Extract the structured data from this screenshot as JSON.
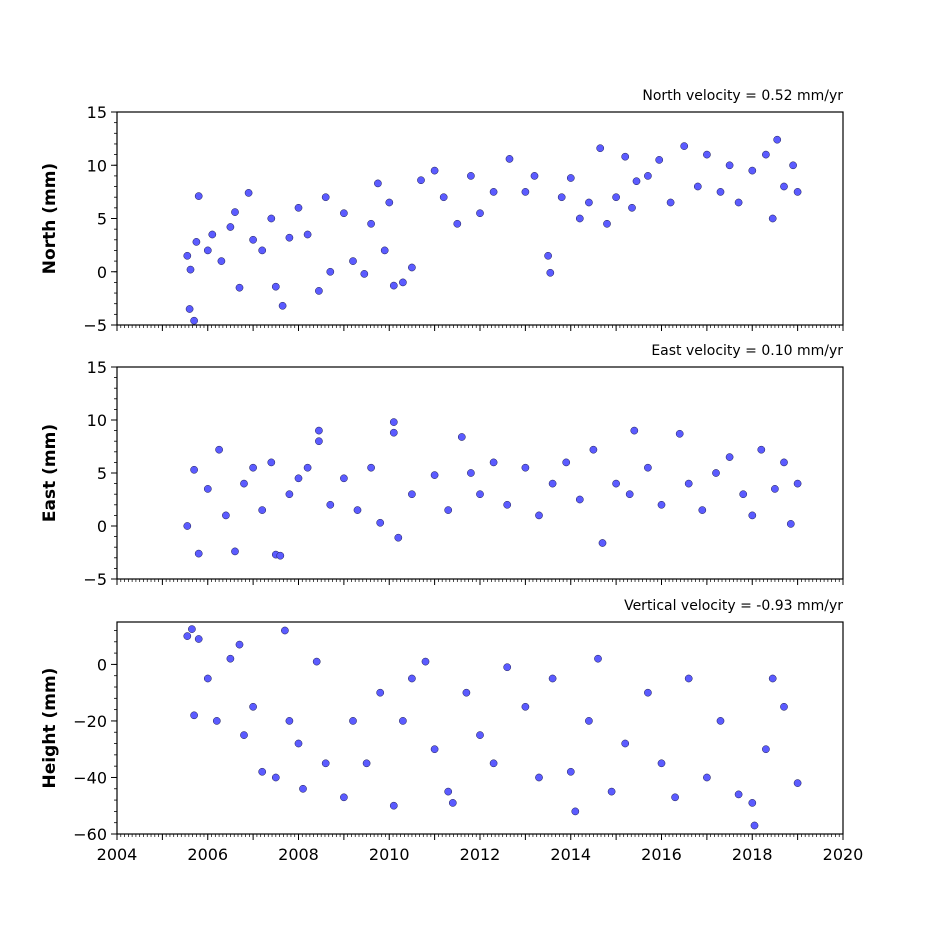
{
  "chart_data": [
    {
      "type": "scatter",
      "ylabel": "North (mm)",
      "velocity_label": "North velocity = 0.52 mm/yr",
      "xlim": [
        2004,
        2020
      ],
      "ylim": [
        -5,
        15
      ],
      "yticks": [
        -5,
        0,
        5,
        10,
        15
      ],
      "ytick_labels": [
        "−5",
        "0",
        "5",
        "10",
        "15"
      ],
      "point_color": "#5b5bff",
      "series": [
        {
          "points": [
            [
              2005.55,
              1.5
            ],
            [
              2005.6,
              -3.5
            ],
            [
              2005.62,
              0.2
            ],
            [
              2005.7,
              -4.6
            ],
            [
              2005.75,
              2.8
            ],
            [
              2005.8,
              7.1
            ],
            [
              2006.0,
              2.0
            ],
            [
              2006.1,
              3.5
            ],
            [
              2006.3,
              1.0
            ],
            [
              2006.5,
              4.2
            ],
            [
              2006.6,
              5.6
            ],
            [
              2006.7,
              -1.5
            ],
            [
              2006.9,
              7.4
            ],
            [
              2007.0,
              3.0
            ],
            [
              2007.2,
              2.0
            ],
            [
              2007.4,
              5.0
            ],
            [
              2007.5,
              -1.4
            ],
            [
              2007.65,
              -3.2
            ],
            [
              2007.8,
              3.2
            ],
            [
              2008.0,
              6.0
            ],
            [
              2008.2,
              3.5
            ],
            [
              2008.45,
              -1.8
            ],
            [
              2008.6,
              7.0
            ],
            [
              2008.7,
              0.0
            ],
            [
              2009.0,
              5.5
            ],
            [
              2009.2,
              1.0
            ],
            [
              2009.45,
              -0.2
            ],
            [
              2009.6,
              4.5
            ],
            [
              2009.75,
              8.3
            ],
            [
              2009.9,
              2.0
            ],
            [
              2010.0,
              6.5
            ],
            [
              2010.1,
              -1.3
            ],
            [
              2010.3,
              -1.0
            ],
            [
              2010.5,
              0.4
            ],
            [
              2010.7,
              8.6
            ],
            [
              2011.0,
              9.5
            ],
            [
              2011.2,
              7.0
            ],
            [
              2011.5,
              4.5
            ],
            [
              2011.8,
              9.0
            ],
            [
              2012.0,
              5.5
            ],
            [
              2012.3,
              7.5
            ],
            [
              2012.65,
              10.6
            ],
            [
              2013.0,
              7.5
            ],
            [
              2013.2,
              9.0
            ],
            [
              2013.5,
              1.5
            ],
            [
              2013.55,
              -0.1
            ],
            [
              2013.8,
              7.0
            ],
            [
              2014.0,
              8.8
            ],
            [
              2014.2,
              5.0
            ],
            [
              2014.4,
              6.5
            ],
            [
              2014.65,
              11.6
            ],
            [
              2014.8,
              4.5
            ],
            [
              2015.0,
              7.0
            ],
            [
              2015.2,
              10.8
            ],
            [
              2015.35,
              6.0
            ],
            [
              2015.45,
              8.5
            ],
            [
              2015.7,
              9.0
            ],
            [
              2015.95,
              10.5
            ],
            [
              2016.2,
              6.5
            ],
            [
              2016.5,
              11.8
            ],
            [
              2016.8,
              8.0
            ],
            [
              2017.0,
              11.0
            ],
            [
              2017.3,
              7.5
            ],
            [
              2017.5,
              10.0
            ],
            [
              2017.7,
              6.5
            ],
            [
              2018.0,
              9.5
            ],
            [
              2018.3,
              11.0
            ],
            [
              2018.45,
              5.0
            ],
            [
              2018.55,
              12.4
            ],
            [
              2018.7,
              8.0
            ],
            [
              2018.9,
              10.0
            ],
            [
              2019.0,
              7.5
            ]
          ]
        }
      ]
    },
    {
      "type": "scatter",
      "ylabel": "East (mm)",
      "velocity_label": "East velocity = 0.10 mm/yr",
      "xlim": [
        2004,
        2020
      ],
      "ylim": [
        -5,
        15
      ],
      "yticks": [
        -5,
        0,
        5,
        10,
        15
      ],
      "ytick_labels": [
        "−5",
        "0",
        "5",
        "10",
        "15"
      ],
      "point_color": "#5b5bff",
      "series": [
        {
          "points": [
            [
              2005.55,
              0.0
            ],
            [
              2005.7,
              5.3
            ],
            [
              2005.8,
              -2.6
            ],
            [
              2006.0,
              3.5
            ],
            [
              2006.25,
              7.2
            ],
            [
              2006.4,
              1.0
            ],
            [
              2006.6,
              -2.4
            ],
            [
              2006.8,
              4.0
            ],
            [
              2007.0,
              5.5
            ],
            [
              2007.2,
              1.5
            ],
            [
              2007.4,
              6.0
            ],
            [
              2007.5,
              -2.7
            ],
            [
              2007.6,
              -2.8
            ],
            [
              2007.8,
              3.0
            ],
            [
              2008.0,
              4.5
            ],
            [
              2008.2,
              5.5
            ],
            [
              2008.45,
              9.0
            ],
            [
              2008.45,
              8.0
            ],
            [
              2008.7,
              2.0
            ],
            [
              2009.0,
              4.5
            ],
            [
              2009.3,
              1.5
            ],
            [
              2009.6,
              5.5
            ],
            [
              2009.8,
              0.3
            ],
            [
              2010.1,
              9.8
            ],
            [
              2010.1,
              8.8
            ],
            [
              2010.2,
              -1.1
            ],
            [
              2010.5,
              3.0
            ],
            [
              2011.0,
              4.8
            ],
            [
              2011.3,
              1.5
            ],
            [
              2011.6,
              8.4
            ],
            [
              2011.8,
              5.0
            ],
            [
              2012.0,
              3.0
            ],
            [
              2012.3,
              6.0
            ],
            [
              2012.6,
              2.0
            ],
            [
              2013.0,
              5.5
            ],
            [
              2013.3,
              1.0
            ],
            [
              2013.6,
              4.0
            ],
            [
              2013.9,
              6.0
            ],
            [
              2014.2,
              2.5
            ],
            [
              2014.5,
              7.2
            ],
            [
              2014.7,
              -1.6
            ],
            [
              2015.0,
              4.0
            ],
            [
              2015.3,
              3.0
            ],
            [
              2015.4,
              9.0
            ],
            [
              2015.7,
              5.5
            ],
            [
              2016.0,
              2.0
            ],
            [
              2016.4,
              8.7
            ],
            [
              2016.6,
              4.0
            ],
            [
              2016.9,
              1.5
            ],
            [
              2017.2,
              5.0
            ],
            [
              2017.5,
              6.5
            ],
            [
              2017.8,
              3.0
            ],
            [
              2018.0,
              1.0
            ],
            [
              2018.2,
              7.2
            ],
            [
              2018.5,
              3.5
            ],
            [
              2018.7,
              6.0
            ],
            [
              2018.85,
              0.2
            ],
            [
              2019.0,
              4.0
            ]
          ]
        }
      ]
    },
    {
      "type": "scatter",
      "ylabel": "Height (mm)",
      "velocity_label": "Vertical velocity = -0.93 mm/yr",
      "xlim": [
        2004,
        2020
      ],
      "ylim": [
        -60,
        15
      ],
      "yticks": [
        -60,
        -40,
        -20,
        0
      ],
      "ytick_labels": [
        "−60",
        "−40",
        "−20",
        "0"
      ],
      "xticks": [
        2004,
        2006,
        2008,
        2010,
        2012,
        2014,
        2016,
        2018,
        2020
      ],
      "xtick_labels": [
        "2004",
        "2006",
        "2008",
        "2010",
        "2012",
        "2014",
        "2016",
        "2018",
        "2020"
      ],
      "point_color": "#5b5bff",
      "series": [
        {
          "points": [
            [
              2005.55,
              10.0
            ],
            [
              2005.65,
              12.5
            ],
            [
              2005.7,
              -18.0
            ],
            [
              2005.8,
              9.0
            ],
            [
              2006.0,
              -5.0
            ],
            [
              2006.2,
              -20.0
            ],
            [
              2006.5,
              2.0
            ],
            [
              2006.7,
              7.0
            ],
            [
              2006.8,
              -25.0
            ],
            [
              2007.0,
              -15.0
            ],
            [
              2007.2,
              -38.0
            ],
            [
              2007.5,
              -40.0
            ],
            [
              2007.7,
              12.0
            ],
            [
              2007.8,
              -20.0
            ],
            [
              2008.0,
              -28.0
            ],
            [
              2008.1,
              -44.0
            ],
            [
              2008.4,
              1.0
            ],
            [
              2008.6,
              -35.0
            ],
            [
              2009.0,
              -47.0
            ],
            [
              2009.2,
              -20.0
            ],
            [
              2009.5,
              -35.0
            ],
            [
              2009.8,
              -10.0
            ],
            [
              2010.1,
              -50.0
            ],
            [
              2010.3,
              -20.0
            ],
            [
              2010.5,
              -5.0
            ],
            [
              2010.8,
              1.0
            ],
            [
              2011.0,
              -30.0
            ],
            [
              2011.3,
              -45.0
            ],
            [
              2011.4,
              -49.0
            ],
            [
              2011.7,
              -10.0
            ],
            [
              2012.0,
              -25.0
            ],
            [
              2012.3,
              -35.0
            ],
            [
              2012.6,
              -1.0
            ],
            [
              2013.0,
              -15.0
            ],
            [
              2013.3,
              -40.0
            ],
            [
              2013.6,
              -5.0
            ],
            [
              2014.0,
              -38.0
            ],
            [
              2014.1,
              -52.0
            ],
            [
              2014.4,
              -20.0
            ],
            [
              2014.6,
              2.0
            ],
            [
              2014.9,
              -45.0
            ],
            [
              2015.2,
              -28.0
            ],
            [
              2015.7,
              -10.0
            ],
            [
              2016.0,
              -35.0
            ],
            [
              2016.3,
              -47.0
            ],
            [
              2016.6,
              -5.0
            ],
            [
              2017.0,
              -40.0
            ],
            [
              2017.3,
              -20.0
            ],
            [
              2017.7,
              -46.0
            ],
            [
              2018.0,
              -49.0
            ],
            [
              2018.05,
              -57.0
            ],
            [
              2018.3,
              -30.0
            ],
            [
              2018.45,
              -5.0
            ],
            [
              2018.7,
              -15.0
            ],
            [
              2019.0,
              -42.0
            ]
          ]
        }
      ]
    }
  ]
}
